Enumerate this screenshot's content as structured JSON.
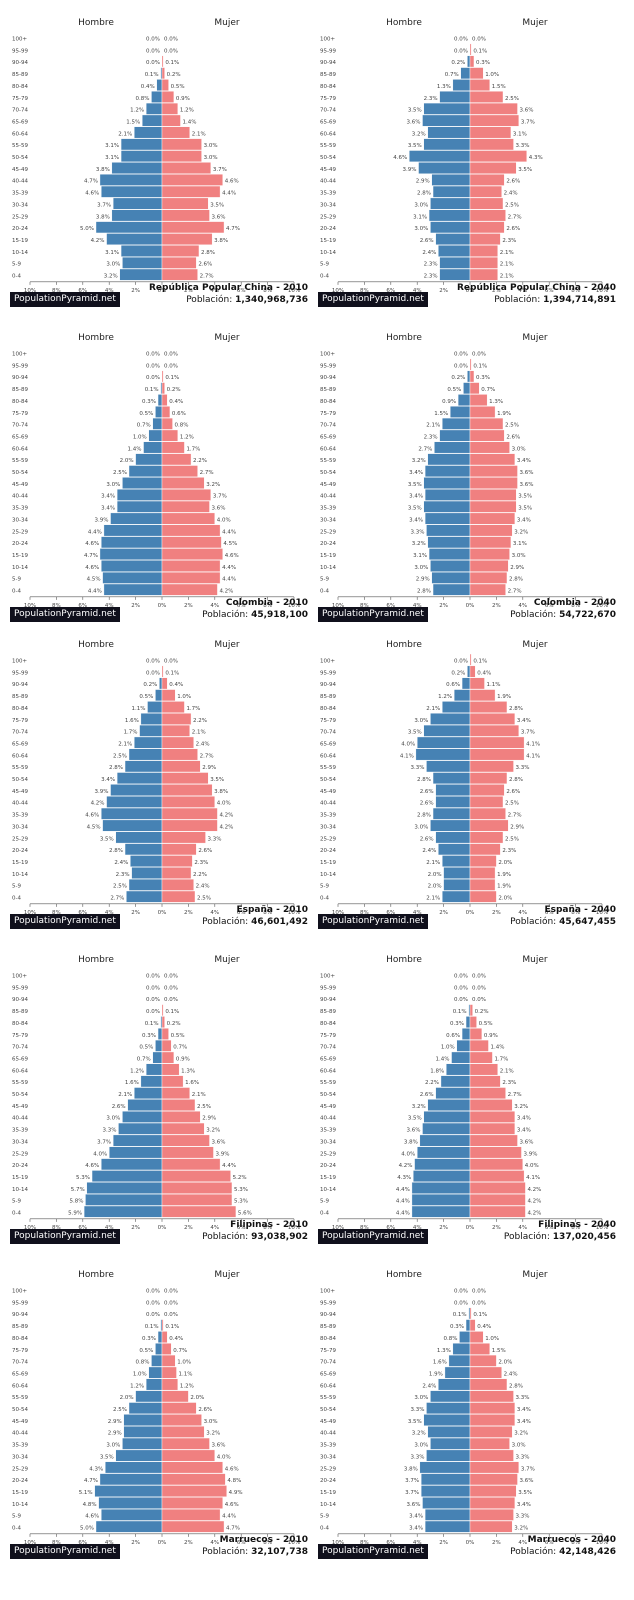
{
  "site": "PopulationPyramid.net",
  "labels": {
    "male": "Hombre",
    "female": "Mujer",
    "population_prefix": "Población:"
  },
  "colors": {
    "male": "#4682b4",
    "female": "#f08080",
    "brand_bg": "#10101c"
  },
  "chart_data": [
    {
      "type": "bar",
      "title": "República Popular China - 2010",
      "population": "1,340,968,736",
      "categories": [
        "100+",
        "95-99",
        "90-94",
        "85-89",
        "80-84",
        "75-79",
        "70-74",
        "65-69",
        "60-64",
        "55-59",
        "50-54",
        "45-49",
        "40-44",
        "35-39",
        "30-34",
        "25-29",
        "20-24",
        "15-19",
        "10-14",
        "5-9",
        "0-4"
      ],
      "series": [
        {
          "name": "Hombre",
          "values": [
            0.0,
            0.0,
            0.0,
            0.1,
            0.4,
            0.8,
            1.2,
            1.5,
            2.1,
            3.1,
            3.1,
            3.8,
            4.7,
            4.6,
            3.7,
            3.8,
            5.0,
            4.2,
            3.1,
            3.0,
            3.2
          ]
        },
        {
          "name": "Mujer",
          "values": [
            0.0,
            0.0,
            0.1,
            0.2,
            0.5,
            0.9,
            1.2,
            1.4,
            2.1,
            3.0,
            3.0,
            3.7,
            4.6,
            4.4,
            3.5,
            3.6,
            4.7,
            3.8,
            2.8,
            2.6,
            2.7
          ]
        }
      ],
      "xticks": [
        "10%",
        "8%",
        "6%",
        "4%",
        "2%",
        "0%",
        "2%",
        "4%",
        "6%",
        "8%",
        "10%"
      ]
    },
    {
      "type": "bar",
      "title": "República Popular China - 2040",
      "population": "1,394,714,891",
      "categories": [
        "100+",
        "95-99",
        "90-94",
        "85-89",
        "80-84",
        "75-79",
        "70-74",
        "65-69",
        "60-64",
        "55-59",
        "50-54",
        "45-49",
        "40-44",
        "35-39",
        "30-34",
        "25-29",
        "20-24",
        "15-19",
        "10-14",
        "5-9",
        "0-4"
      ],
      "series": [
        {
          "name": "Hombre",
          "values": [
            0.0,
            0.0,
            0.2,
            0.7,
            1.3,
            2.3,
            3.5,
            3.6,
            3.2,
            3.5,
            4.6,
            3.9,
            2.9,
            2.8,
            3.0,
            3.1,
            3.0,
            2.6,
            2.4,
            2.3,
            2.3
          ]
        },
        {
          "name": "Mujer",
          "values": [
            0.0,
            0.1,
            0.3,
            1.0,
            1.5,
            2.5,
            3.6,
            3.7,
            3.1,
            3.3,
            4.3,
            3.5,
            2.6,
            2.4,
            2.5,
            2.7,
            2.6,
            2.3,
            2.1,
            2.1,
            2.1
          ]
        }
      ],
      "xticks": [
        "10%",
        "8%",
        "6%",
        "4%",
        "2%",
        "0%",
        "2%",
        "4%",
        "6%",
        "8%",
        "10%"
      ]
    },
    {
      "type": "bar",
      "title": "Colombia - 2010",
      "population": "45,918,100",
      "categories": [
        "100+",
        "95-99",
        "90-94",
        "85-89",
        "80-84",
        "75-79",
        "70-74",
        "65-69",
        "60-64",
        "55-59",
        "50-54",
        "45-49",
        "40-44",
        "35-39",
        "30-34",
        "25-29",
        "20-24",
        "15-19",
        "10-14",
        "5-9",
        "0-4"
      ],
      "series": [
        {
          "name": "Hombre",
          "values": [
            0.0,
            0.0,
            0.0,
            0.1,
            0.3,
            0.5,
            0.7,
            1.0,
            1.4,
            2.0,
            2.5,
            3.0,
            3.4,
            3.4,
            3.9,
            4.4,
            4.6,
            4.7,
            4.6,
            4.5,
            4.4
          ]
        },
        {
          "name": "Mujer",
          "values": [
            0.0,
            0.0,
            0.1,
            0.2,
            0.4,
            0.6,
            0.8,
            1.2,
            1.7,
            2.2,
            2.7,
            3.2,
            3.7,
            3.6,
            4.0,
            4.4,
            4.5,
            4.6,
            4.4,
            4.4,
            4.2
          ]
        }
      ],
      "xticks": [
        "10%",
        "8%",
        "6%",
        "4%",
        "2%",
        "0%",
        "2%",
        "4%",
        "6%",
        "8%",
        "10%"
      ]
    },
    {
      "type": "bar",
      "title": "Colombia - 2040",
      "population": "54,722,670",
      "categories": [
        "100+",
        "95-99",
        "90-94",
        "85-89",
        "80-84",
        "75-79",
        "70-74",
        "65-69",
        "60-64",
        "55-59",
        "50-54",
        "45-49",
        "40-44",
        "35-39",
        "30-34",
        "25-29",
        "20-24",
        "15-19",
        "10-14",
        "5-9",
        "0-4"
      ],
      "series": [
        {
          "name": "Hombre",
          "values": [
            0.0,
            0.0,
            0.2,
            0.5,
            0.9,
            1.5,
            2.1,
            2.3,
            2.7,
            3.2,
            3.4,
            3.5,
            3.4,
            3.5,
            3.4,
            3.3,
            3.2,
            3.1,
            3.0,
            2.9,
            2.8
          ]
        },
        {
          "name": "Mujer",
          "values": [
            0.0,
            0.1,
            0.3,
            0.7,
            1.3,
            1.9,
            2.5,
            2.6,
            3.0,
            3.4,
            3.6,
            3.6,
            3.5,
            3.5,
            3.4,
            3.2,
            3.1,
            3.0,
            2.9,
            2.8,
            2.7
          ]
        }
      ],
      "xticks": [
        "10%",
        "8%",
        "6%",
        "4%",
        "2%",
        "0%",
        "2%",
        "4%",
        "6%",
        "8%",
        "10%"
      ]
    },
    {
      "type": "bar",
      "title": "España - 2010",
      "population": "46,601,492",
      "categories": [
        "100+",
        "95-99",
        "90-94",
        "85-89",
        "80-84",
        "75-79",
        "70-74",
        "65-69",
        "60-64",
        "55-59",
        "50-54",
        "45-49",
        "40-44",
        "35-39",
        "30-34",
        "25-29",
        "20-24",
        "15-19",
        "10-14",
        "5-9",
        "0-4"
      ],
      "series": [
        {
          "name": "Hombre",
          "values": [
            0.0,
            0.0,
            0.2,
            0.5,
            1.1,
            1.6,
            1.7,
            2.1,
            2.5,
            2.8,
            3.4,
            3.9,
            4.2,
            4.6,
            4.5,
            3.5,
            2.8,
            2.4,
            2.3,
            2.5,
            2.7
          ]
        },
        {
          "name": "Mujer",
          "values": [
            0.0,
            0.1,
            0.4,
            1.0,
            1.7,
            2.2,
            2.1,
            2.4,
            2.7,
            2.9,
            3.5,
            3.8,
            4.0,
            4.2,
            4.2,
            3.3,
            2.6,
            2.3,
            2.2,
            2.4,
            2.5
          ]
        }
      ],
      "xticks": [
        "10%",
        "8%",
        "6%",
        "4%",
        "2%",
        "0%",
        "2%",
        "4%",
        "6%",
        "8%",
        "10%"
      ]
    },
    {
      "type": "bar",
      "title": "España - 2040",
      "population": "45,647,455",
      "categories": [
        "100+",
        "95-99",
        "90-94",
        "85-89",
        "80-84",
        "75-79",
        "70-74",
        "65-69",
        "60-64",
        "55-59",
        "50-54",
        "45-49",
        "40-44",
        "35-39",
        "30-34",
        "25-29",
        "20-24",
        "15-19",
        "10-14",
        "5-9",
        "0-4"
      ],
      "series": [
        {
          "name": "Hombre",
          "values": [
            0.0,
            0.2,
            0.6,
            1.2,
            2.1,
            3.0,
            3.5,
            4.0,
            4.1,
            3.3,
            2.8,
            2.6,
            2.6,
            2.8,
            3.0,
            2.6,
            2.4,
            2.1,
            2.0,
            2.0,
            2.1
          ]
        },
        {
          "name": "Mujer",
          "values": [
            0.1,
            0.4,
            1.1,
            1.9,
            2.8,
            3.4,
            3.7,
            4.1,
            4.1,
            3.3,
            2.8,
            2.6,
            2.5,
            2.7,
            2.9,
            2.5,
            2.3,
            2.0,
            1.9,
            1.9,
            2.0
          ]
        }
      ],
      "xticks": [
        "10%",
        "8%",
        "6%",
        "4%",
        "2%",
        "0%",
        "2%",
        "4%",
        "6%",
        "8%",
        "10%"
      ]
    },
    {
      "type": "bar",
      "title": "Filipinas - 2010",
      "population": "93,038,902",
      "categories": [
        "100+",
        "95-99",
        "90-94",
        "85-89",
        "80-84",
        "75-79",
        "70-74",
        "65-69",
        "60-64",
        "55-59",
        "50-54",
        "45-49",
        "40-44",
        "35-39",
        "30-34",
        "25-29",
        "20-24",
        "15-19",
        "10-14",
        "5-9",
        "0-4"
      ],
      "series": [
        {
          "name": "Hombre",
          "values": [
            0.0,
            0.0,
            0.0,
            0.0,
            0.1,
            0.3,
            0.5,
            0.7,
            1.2,
            1.6,
            2.1,
            2.6,
            3.0,
            3.3,
            3.7,
            4.0,
            4.6,
            5.3,
            5.7,
            5.8,
            5.9
          ]
        },
        {
          "name": "Mujer",
          "values": [
            0.0,
            0.0,
            0.0,
            0.1,
            0.2,
            0.5,
            0.7,
            0.9,
            1.3,
            1.6,
            2.1,
            2.5,
            2.9,
            3.2,
            3.6,
            3.9,
            4.4,
            5.2,
            5.3,
            5.3,
            5.6
          ]
        }
      ],
      "xticks": [
        "10%",
        "8%",
        "6%",
        "4%",
        "2%",
        "0%",
        "2%",
        "4%",
        "6%",
        "8%",
        "10%"
      ]
    },
    {
      "type": "bar",
      "title": "Filipinas - 2040",
      "population": "137,020,456",
      "categories": [
        "100+",
        "95-99",
        "90-94",
        "85-89",
        "80-84",
        "75-79",
        "70-74",
        "65-69",
        "60-64",
        "55-59",
        "50-54",
        "45-49",
        "40-44",
        "35-39",
        "30-34",
        "25-29",
        "20-24",
        "15-19",
        "10-14",
        "5-9",
        "0-4"
      ],
      "series": [
        {
          "name": "Hombre",
          "values": [
            0.0,
            0.0,
            0.0,
            0.1,
            0.3,
            0.6,
            1.0,
            1.4,
            1.8,
            2.2,
            2.6,
            3.2,
            3.5,
            3.6,
            3.8,
            4.0,
            4.2,
            4.3,
            4.4,
            4.4,
            4.4
          ]
        },
        {
          "name": "Mujer",
          "values": [
            0.0,
            0.0,
            0.0,
            0.2,
            0.5,
            0.9,
            1.4,
            1.7,
            2.1,
            2.3,
            2.7,
            3.2,
            3.4,
            3.4,
            3.6,
            3.9,
            4.0,
            4.1,
            4.2,
            4.2,
            4.2
          ]
        }
      ],
      "xticks": [
        "10%",
        "8%",
        "6%",
        "4%",
        "2%",
        "0%",
        "2%",
        "4%",
        "6%",
        "8%",
        "10%"
      ]
    },
    {
      "type": "bar",
      "title": "Marruecos - 2010",
      "population": "32,107,738",
      "categories": [
        "100+",
        "95-99",
        "90-94",
        "85-89",
        "80-84",
        "75-79",
        "70-74",
        "65-69",
        "60-64",
        "55-59",
        "50-54",
        "45-49",
        "40-44",
        "35-39",
        "30-34",
        "25-29",
        "20-24",
        "15-19",
        "10-14",
        "5-9",
        "0-4"
      ],
      "series": [
        {
          "name": "Hombre",
          "values": [
            0.0,
            0.0,
            0.0,
            0.1,
            0.3,
            0.5,
            0.8,
            1.0,
            1.2,
            2.0,
            2.5,
            2.9,
            2.9,
            3.0,
            3.5,
            4.3,
            4.7,
            5.1,
            4.8,
            4.6,
            5.0
          ]
        },
        {
          "name": "Mujer",
          "values": [
            0.0,
            0.0,
            0.0,
            0.1,
            0.4,
            0.7,
            1.0,
            1.1,
            1.2,
            2.0,
            2.6,
            3.0,
            3.2,
            3.6,
            4.0,
            4.6,
            4.8,
            4.9,
            4.6,
            4.4,
            4.7
          ]
        }
      ],
      "xticks": [
        "10%",
        "8%",
        "6%",
        "4%",
        "2%",
        "0%",
        "2%",
        "4%",
        "6%",
        "8%",
        "10%"
      ]
    },
    {
      "type": "bar",
      "title": "Marruecos - 2040",
      "population": "42,148,426",
      "categories": [
        "100+",
        "95-99",
        "90-94",
        "85-89",
        "80-84",
        "75-79",
        "70-74",
        "65-69",
        "60-64",
        "55-59",
        "50-54",
        "45-49",
        "40-44",
        "35-39",
        "30-34",
        "25-29",
        "20-24",
        "15-19",
        "10-14",
        "5-9",
        "0-4"
      ],
      "series": [
        {
          "name": "Hombre",
          "values": [
            0.0,
            0.0,
            0.1,
            0.3,
            0.8,
            1.3,
            1.6,
            1.9,
            2.4,
            3.0,
            3.3,
            3.5,
            3.2,
            3.0,
            3.3,
            3.8,
            3.7,
            3.7,
            3.6,
            3.4,
            3.4
          ]
        },
        {
          "name": "Mujer",
          "values": [
            0.0,
            0.0,
            0.1,
            0.4,
            1.0,
            1.5,
            2.0,
            2.4,
            2.8,
            3.3,
            3.4,
            3.4,
            3.2,
            3.0,
            3.3,
            3.7,
            3.6,
            3.5,
            3.4,
            3.3,
            3.2
          ]
        }
      ],
      "xticks": [
        "10%",
        "8%",
        "6%",
        "4%",
        "2%",
        "0%",
        "2%",
        "4%",
        "6%",
        "8%",
        "10%"
      ]
    }
  ]
}
